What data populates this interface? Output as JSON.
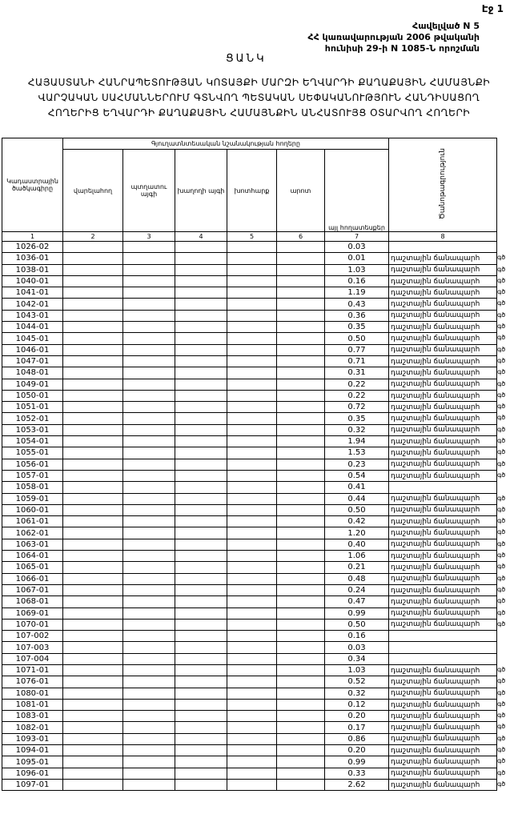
{
  "page_label": "Էջ 1",
  "appendix": [
    "Հավելված N 5",
    "ՀՀ կառավարության 2006 թվականի",
    "հունիսի 29-ի N 1085-Ն որոշման"
  ],
  "list_title": "ՑԱՆԿ",
  "title_lines": [
    "ՀԱՅԱՍՏԱՆԻ ՀԱՆՐԱՊԵՏՈՒԹՅԱՆ ԿՈՏԱՅՔԻ ՄԱՐԶԻ ԵՂՎԱՐԴԻ ՔԱՂԱՔԱՅԻՆ ՀԱՄԱՅՆՔԻ",
    "ՎԱՐՉԱԿԱՆ ՍԱՀՄԱՆՆԵՐՈՒՄ ԳՏՆՎՈՂ ՊԵՏԱԿԱՆ ՍԵՓԱԿԱՆՈՒԹՅՈՒՆ ՀԱՆԴԻՍԱՑՈՂ",
    "ՀՈՂԵՐԻՑ ԵՂՎԱՐԴԻ ՔԱՂԱՔԱՅԻՆ ՀԱՄԱՅՆՔԻՆ ԱՆՀԱՏՈՒՅՑ ՕՏԱՐՎՈՂ ՀՈՂԵՐԻ"
  ],
  "table": {
    "col_code": "Կադաստրային ծածկագիրը",
    "group_header": "Գյուղատնտեսական նշանակության հողերը",
    "cols": [
      "վարելահող",
      "պտղատու այգի",
      "խաղողի այգի",
      "խոտհարք",
      "արոտ",
      "այլ հողատեսքեր"
    ],
    "col_note": "Ծանոթագրություն",
    "col_numbers": [
      "1",
      "2",
      "3",
      "4",
      "5",
      "6",
      "7",
      "8"
    ],
    "note_text": "դաշտային ճանապարհ",
    "note_suffix": "գծ",
    "rows": [
      [
        "1026-02",
        "0.03",
        ""
      ],
      [
        "1036-01",
        "0.01",
        "դաշտային ճանապարհ"
      ],
      [
        "1038-01",
        "1.03",
        "դաշտային ճանապարհ"
      ],
      [
        "1040-01",
        "0.16",
        "դաշտային ճանապարհ"
      ],
      [
        "1041-01",
        "1.19",
        "դաշտային ճանապարհ"
      ],
      [
        "1042-01",
        "0.43",
        "դաշտային ճանապարհ"
      ],
      [
        "1043-01",
        "0.36",
        "դաշտային ճանապարհ"
      ],
      [
        "1044-01",
        "0.35",
        "դաշտային ճանապարհ"
      ],
      [
        "1045-01",
        "0.50",
        "դաշտային ճանապարհ"
      ],
      [
        "1046-01",
        "0.77",
        "դաշտային ճանապարհ"
      ],
      [
        "1047-01",
        "0.71",
        "դաշտային ճանապարհ"
      ],
      [
        "1048-01",
        "0.31",
        "դաշտային ճանապարհ"
      ],
      [
        "1049-01",
        "0.22",
        "դաշտային ճանապարհ"
      ],
      [
        "1050-01",
        "0.22",
        "դաշտային ճանապարհ"
      ],
      [
        "1051-01",
        "0.72",
        "դաշտային ճանապարհ"
      ],
      [
        "1052-01",
        "0.35",
        "դաշտային ճանապարհ"
      ],
      [
        "1053-01",
        "0.32",
        "դաշտային ճանապարհ"
      ],
      [
        "1054-01",
        "1.94",
        "դաշտային ճանապարհ"
      ],
      [
        "1055-01",
        "1.53",
        "դաշտային ճանապարհ"
      ],
      [
        "1056-01",
        "0.23",
        "դաշտային ճանապարհ"
      ],
      [
        "1057-01",
        "0.54",
        "դաշտային ճանապարհ"
      ],
      [
        "1058-01",
        "0.41",
        ""
      ],
      [
        "1059-01",
        "0.44",
        "դաշտային ճանապարհ"
      ],
      [
        "1060-01",
        "0.50",
        "դաշտային ճանապարհ"
      ],
      [
        "1061-01",
        "0.42",
        "դաշտային ճանապարհ"
      ],
      [
        "1062-01",
        "1.20",
        "դաշտային ճանապարհ"
      ],
      [
        "1063-01",
        "0.40",
        "դաշտային ճանապարհ"
      ],
      [
        "1064-01",
        "1.06",
        "դաշտային ճանապարհ"
      ],
      [
        "1065-01",
        "0.21",
        "դաշտային ճանապարհ"
      ],
      [
        "1066-01",
        "0.48",
        "դաշտային ճանապարհ"
      ],
      [
        "1067-01",
        "0.24",
        "դաշտային ճանապարհ"
      ],
      [
        "1068-01",
        "0.47",
        "դաշտային ճանապարհ"
      ],
      [
        "1069-01",
        "0.99",
        "դաշտային ճանապարհ"
      ],
      [
        "1070-01",
        "0.50",
        "դաշտային ճանապարհ"
      ],
      [
        "107-002",
        "0.16",
        ""
      ],
      [
        "107-003",
        "0.03",
        ""
      ],
      [
        "107-004",
        "0.34",
        ""
      ],
      [
        "1071-01",
        "1.03",
        "դաշտային ճանապարհ"
      ],
      [
        "1076-01",
        "0.52",
        "դաշտային ճանապարհ"
      ],
      [
        "1080-01",
        "0.32",
        "դաշտային ճանապարհ"
      ],
      [
        "1081-01",
        "0.12",
        "դաշտային ճանապարհ"
      ],
      [
        "1083-01",
        "0.20",
        "դաշտային ճանապարհ"
      ],
      [
        "1082-01",
        "0.17",
        "դաշտային ճանապարհ"
      ],
      [
        "1093-01",
        "0.86",
        "դաշտային ճանապարհ"
      ],
      [
        "1094-01",
        "0.20",
        "դաշտային ճանապարհ"
      ],
      [
        "1095-01",
        "0.99",
        "դաշտային ճանապարհ"
      ],
      [
        "1096-01",
        "0.33",
        "դաշտային ճանապարհ"
      ],
      [
        "1097-01",
        "2.62",
        "դաշտային ճանապարհ"
      ]
    ]
  }
}
